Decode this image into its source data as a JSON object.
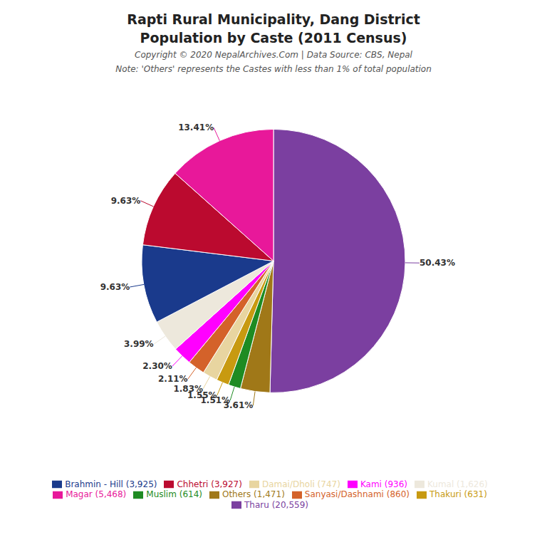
{
  "chart_data": {
    "type": "pie",
    "title": "Rapti Rural Municipality, Dang District",
    "subtitle": "Population by Caste (2011 Census)",
    "annotations": [
      "Copyright © 2020 NepalArchives.Com | Data Source: CBS, Nepal",
      "Note: 'Others' represents the Castes with less than 1% of total population"
    ],
    "categories": [
      "Tharu (20,559)",
      "Others (1,471)",
      "Muslim (614)",
      "Thakuri (631)",
      "Damai/Dholi (747)",
      "Sanyasi/Dashnami (860)",
      "Kami (936)",
      "Kumal (1,626)",
      "Brahmin - Hill (3,925)",
      "Chhetri (3,927)",
      "Magar (5,468)"
    ],
    "values": [
      50.43,
      3.61,
      1.51,
      1.55,
      1.83,
      2.11,
      2.3,
      3.99,
      9.63,
      9.63,
      13.41
    ],
    "value_labels": [
      "50.43%",
      "3.61%",
      "1.51%",
      "1.55%",
      "1.83%",
      "2.11%",
      "2.30%",
      "3.99%",
      "9.63%",
      "9.63%",
      "13.41%"
    ],
    "colors": [
      "#7B3FA0",
      "#A07818",
      "#1E8B22",
      "#C89A10",
      "#E8D5A0",
      "#D4622A",
      "#FF00FF",
      "#EDE8DC",
      "#1A3A8C",
      "#BB0A2F",
      "#E8189A"
    ],
    "data_labels": true,
    "legend": "bottom"
  }
}
